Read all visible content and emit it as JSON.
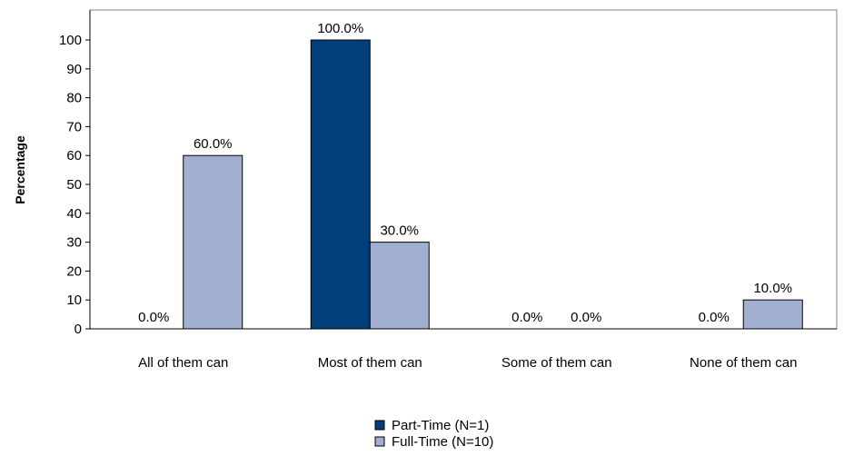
{
  "chart_data": {
    "type": "bar",
    "title": "",
    "xlabel": "",
    "ylabel": "Percentage",
    "ylim": [
      0,
      100
    ],
    "yticks": [
      0,
      10,
      20,
      30,
      40,
      50,
      60,
      70,
      80,
      90,
      100
    ],
    "categories": [
      "All of them can",
      "Most of them can",
      "Some of them can",
      "None of them can"
    ],
    "series": [
      {
        "name": "Part-Time (N=1)",
        "color": "#003f7a",
        "values": [
          0.0,
          100.0,
          0.0,
          0.0
        ],
        "labels": [
          "0.0%",
          "100.0%",
          "0.0%",
          "0.0%"
        ]
      },
      {
        "name": "Full-Time (N=10)",
        "color": "#a1afd0",
        "values": [
          60.0,
          30.0,
          0.0,
          10.0
        ],
        "labels": [
          "60.0%",
          "30.0%",
          "0.0%",
          "10.0%"
        ]
      }
    ],
    "grid": false,
    "legend_position": "bottom-center"
  }
}
